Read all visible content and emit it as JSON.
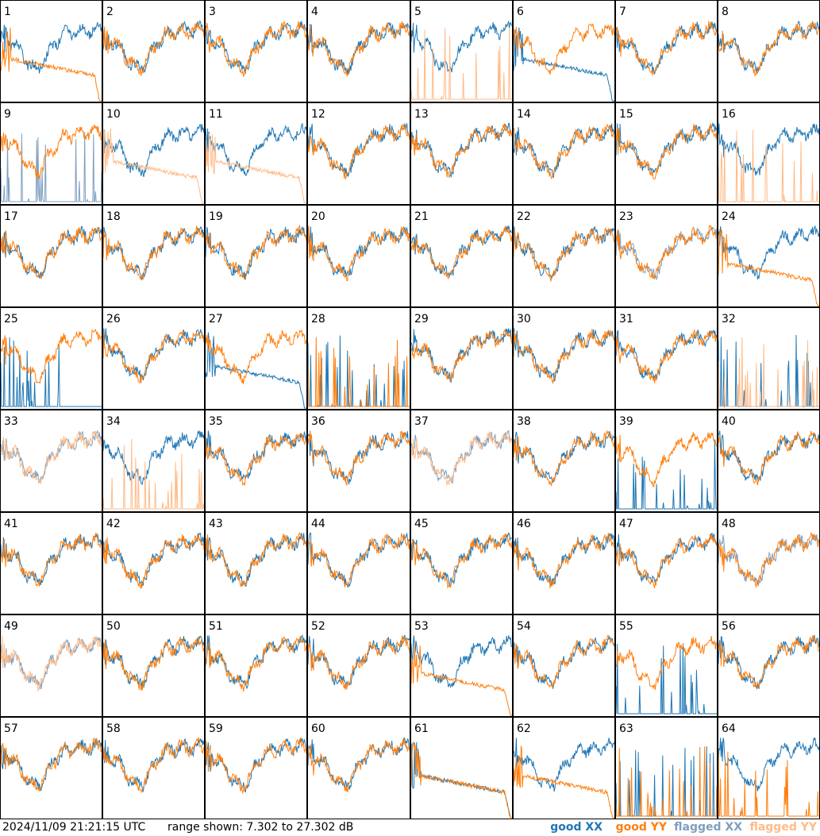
{
  "chart_data": {
    "type": "line",
    "panel_count": 64,
    "columns": 8,
    "rows": 8,
    "panel_labels": [
      "1",
      "2",
      "3",
      "4",
      "5",
      "6",
      "7",
      "8",
      "9",
      "10",
      "11",
      "12",
      "13",
      "14",
      "15",
      "16",
      "17",
      "18",
      "19",
      "20",
      "21",
      "22",
      "23",
      "24",
      "25",
      "26",
      "27",
      "28",
      "29",
      "30",
      "31",
      "32",
      "33",
      "34",
      "35",
      "36",
      "37",
      "38",
      "39",
      "40",
      "41",
      "42",
      "43",
      "44",
      "45",
      "46",
      "47",
      "48",
      "49",
      "50",
      "51",
      "52",
      "53",
      "54",
      "55",
      "56",
      "57",
      "58",
      "59",
      "60",
      "61",
      "62",
      "63",
      "64"
    ],
    "ylim": [
      7.302,
      27.302
    ],
    "y_unit": "dB",
    "series": [
      {
        "name": "good XX",
        "color": "#1f77b4"
      },
      {
        "name": "good YY",
        "color": "#ff7f0e"
      },
      {
        "name": "flagged XX",
        "color": "#7f9fbf"
      },
      {
        "name": "flagged YY",
        "color": "#ffbb88"
      }
    ],
    "panel_flags": {
      "xx_flagged": [
        9,
        23,
        48
      ],
      "yy_flagged": [
        5,
        10,
        11,
        16,
        32,
        34
      ],
      "both_flagged": [
        33,
        37,
        49
      ],
      "xx_spiky": [
        9,
        25,
        28,
        32,
        39,
        55,
        63
      ],
      "yy_spiky": [
        5,
        16,
        28,
        32,
        34,
        63,
        64
      ],
      "yy_decay": [
        1,
        10,
        11,
        24,
        53,
        61,
        62
      ],
      "xx_decay": [
        6,
        27,
        61
      ]
    }
  },
  "footer": {
    "timestamp": "2024/11/09 21:21:15 UTC",
    "range_text": "range shown: 7.302 to 27.302 dB"
  },
  "legend": {
    "good_xx": "good XX",
    "good_yy": "good YY",
    "flagged_xx": "flagged XX",
    "flagged_yy": "flagged YY",
    "good_xx_color": "#1f77b4",
    "good_yy_color": "#ff7f0e",
    "flagged_xx_color": "#7f9fbf",
    "flagged_yy_color": "#ffbb88"
  }
}
